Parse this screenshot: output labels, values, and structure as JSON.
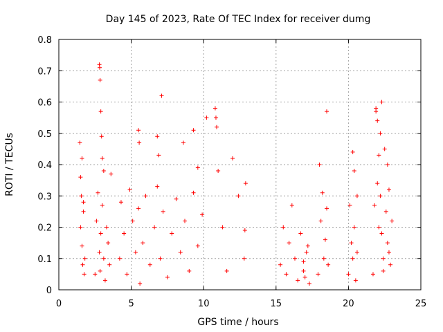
{
  "chart_data": {
    "type": "scatter",
    "title": "Day 145 of 2023, Rate Of TEC Index for receiver dumg",
    "xlabel": "GPS time / hours",
    "ylabel": "ROTI / TECUs",
    "xlim": [
      0,
      25
    ],
    "ylim": [
      0,
      0.8
    ],
    "xticks": [
      0,
      5,
      10,
      15,
      20,
      25
    ],
    "yticks": [
      0,
      0.1,
      0.2,
      0.3,
      0.4,
      0.5,
      0.6,
      0.7,
      0.8
    ],
    "xtick_labels": [
      "0",
      "5",
      "10",
      "15",
      "20",
      "25"
    ],
    "ytick_labels": [
      "0",
      "0.1",
      "0.2",
      "0.3",
      "0.4",
      "0.5",
      "0.6",
      "0.7",
      "0.8"
    ],
    "grid": true,
    "legend": "none",
    "marker": "+",
    "marker_color": "#ff0000",
    "series": [
      {
        "x": [
          1.45,
          1.5,
          1.55,
          1.6,
          1.65,
          1.7,
          1.75,
          1.8,
          1.5,
          1.6,
          1.7,
          2.5,
          2.6,
          2.7,
          2.8,
          2.85,
          2.9,
          3.0,
          3.1,
          3.2,
          3.3,
          3.4,
          3.5,
          2.8,
          2.82,
          2.85,
          2.9,
          2.95,
          3.0,
          3.1,
          3.6,
          4.2,
          4.3,
          4.5,
          4.7,
          4.9,
          5.1,
          5.3,
          5.5,
          5.6,
          5.8,
          6.0,
          6.3,
          6.6,
          6.8,
          7.0,
          7.2,
          7.5,
          7.8,
          8.1,
          8.4,
          8.7,
          9.0,
          9.3,
          9.6,
          9.9,
          5.5,
          5.55,
          6.8,
          6.9,
          7.1,
          8.6,
          9.3,
          9.6,
          10.2,
          10.8,
          10.85,
          10.9,
          11.0,
          11.3,
          11.6,
          12.0,
          12.4,
          12.8,
          12.85,
          12.9,
          15.3,
          15.5,
          15.7,
          15.9,
          16.1,
          16.3,
          16.5,
          16.7,
          16.9,
          17.1,
          17.3,
          16.9,
          17.0,
          17.2,
          17.9,
          18.0,
          18.1,
          18.2,
          18.3,
          18.4,
          18.5,
          18.6,
          18.5,
          20.0,
          20.1,
          20.2,
          20.3,
          20.4,
          20.5,
          20.6,
          20.3,
          20.4,
          20.6,
          21.7,
          21.8,
          21.9,
          22.0,
          22.1,
          22.2,
          22.3,
          22.4,
          22.5,
          22.6,
          22.7,
          22.8,
          22.9,
          23.0,
          21.9,
          22.0,
          22.1,
          22.2,
          22.3,
          22.4,
          22.7,
          22.8
        ],
        "y": [
          0.47,
          0.2,
          0.3,
          0.14,
          0.08,
          0.25,
          0.05,
          0.1,
          0.36,
          0.42,
          0.28,
          0.05,
          0.22,
          0.31,
          0.12,
          0.06,
          0.18,
          0.27,
          0.1,
          0.03,
          0.2,
          0.15,
          0.08,
          0.72,
          0.71,
          0.67,
          0.57,
          0.49,
          0.42,
          0.38,
          0.37,
          0.1,
          0.28,
          0.18,
          0.05,
          0.32,
          0.22,
          0.12,
          0.26,
          0.02,
          0.15,
          0.3,
          0.08,
          0.2,
          0.33,
          0.1,
          0.25,
          0.04,
          0.18,
          0.29,
          0.12,
          0.22,
          0.06,
          0.31,
          0.14,
          0.24,
          0.51,
          0.47,
          0.49,
          0.43,
          0.62,
          0.47,
          0.51,
          0.39,
          0.55,
          0.58,
          0.55,
          0.52,
          0.38,
          0.2,
          0.06,
          0.42,
          0.3,
          0.1,
          0.19,
          0.34,
          0.08,
          0.2,
          0.05,
          0.15,
          0.27,
          0.1,
          0.03,
          0.18,
          0.06,
          0.12,
          0.02,
          0.09,
          0.04,
          0.14,
          0.05,
          0.4,
          0.22,
          0.31,
          0.1,
          0.16,
          0.26,
          0.08,
          0.57,
          0.05,
          0.27,
          0.15,
          0.1,
          0.2,
          0.03,
          0.12,
          0.44,
          0.38,
          0.3,
          0.05,
          0.27,
          0.58,
          0.34,
          0.2,
          0.5,
          0.6,
          0.1,
          0.45,
          0.25,
          0.15,
          0.32,
          0.08,
          0.22,
          0.57,
          0.54,
          0.43,
          0.3,
          0.18,
          0.06,
          0.4,
          0.12
        ]
      }
    ]
  }
}
